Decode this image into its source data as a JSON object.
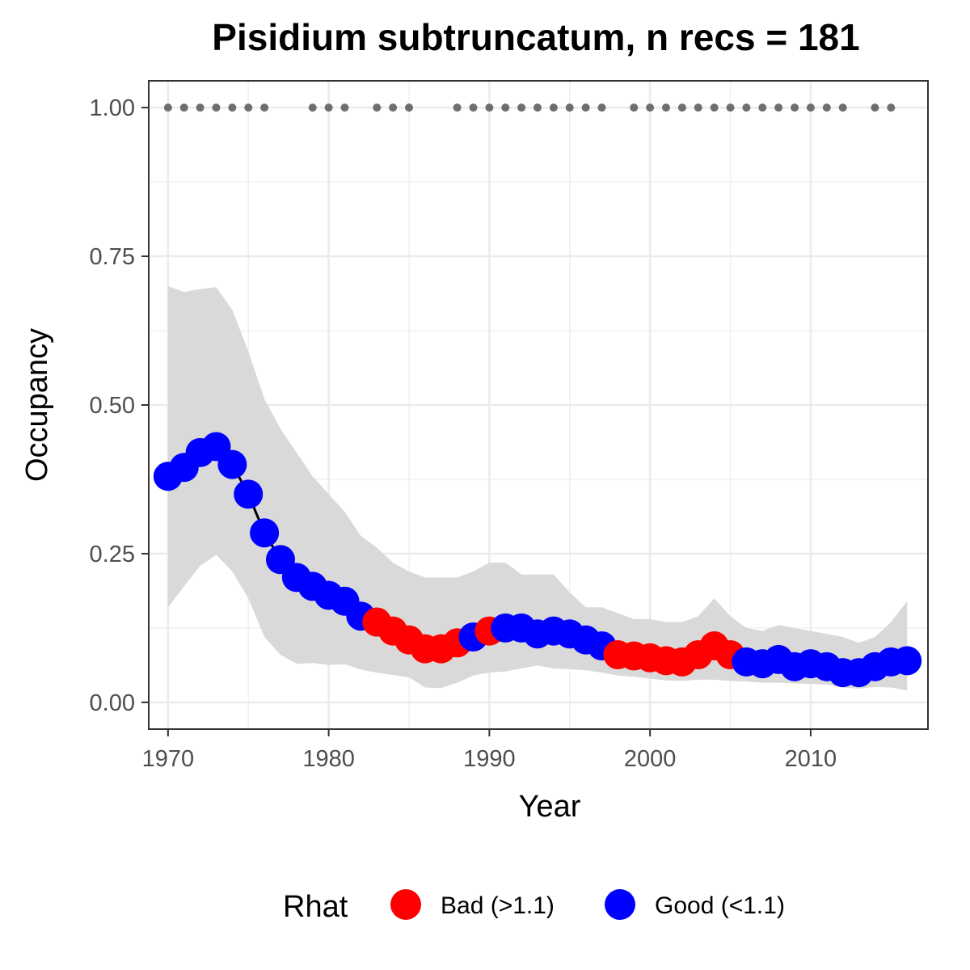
{
  "chart_data": {
    "type": "line",
    "title": "Pisidium subtruncatum, n recs = 181",
    "xlabel": "Year",
    "ylabel": "Occupancy",
    "xlim": [
      1968.8,
      2017.3
    ],
    "ylim": [
      -0.045,
      1.045
    ],
    "xticks": [
      1970,
      1980,
      1990,
      2000,
      2010
    ],
    "xtick_labels": [
      "1970",
      "1980",
      "1990",
      "2000",
      "2010"
    ],
    "yticks": [
      0,
      0.25,
      0.5,
      0.75,
      1.0
    ],
    "ytick_labels": [
      "0.00",
      "0.25",
      "0.50",
      "0.75",
      "1.00"
    ],
    "grid": true,
    "legend": {
      "title": "Rhat",
      "position": "bottom",
      "entries": [
        {
          "key": "Bad",
          "label": "Bad (>1.1)",
          "color": "#ff0000"
        },
        {
          "key": "Good",
          "label": "Good (<1.1)",
          "color": "#0000ff"
        }
      ]
    },
    "colors": {
      "line": "#000000",
      "ribbon": "#d9d9d9",
      "record_dots": "#6e6e6e"
    },
    "years": [
      1970,
      1971,
      1972,
      1973,
      1974,
      1975,
      1976,
      1977,
      1978,
      1979,
      1980,
      1981,
      1982,
      1983,
      1984,
      1985,
      1986,
      1987,
      1988,
      1989,
      1990,
      1991,
      1992,
      1993,
      1994,
      1995,
      1996,
      1997,
      1998,
      1999,
      2000,
      2001,
      2002,
      2003,
      2004,
      2005,
      2006,
      2007,
      2008,
      2009,
      2010,
      2011,
      2012,
      2013,
      2014,
      2015,
      2016
    ],
    "occupancy": [
      0.38,
      0.395,
      0.42,
      0.43,
      0.4,
      0.35,
      0.285,
      0.24,
      0.21,
      0.195,
      0.18,
      0.17,
      0.145,
      0.135,
      0.12,
      0.105,
      0.09,
      0.09,
      0.1,
      0.11,
      0.12,
      0.125,
      0.125,
      0.115,
      0.12,
      0.115,
      0.105,
      0.095,
      0.08,
      0.078,
      0.075,
      0.07,
      0.068,
      0.08,
      0.095,
      0.08,
      0.068,
      0.065,
      0.072,
      0.06,
      0.065,
      0.06,
      0.05,
      0.05,
      0.06,
      0.068,
      0.07
    ],
    "lower": [
      0.16,
      0.195,
      0.23,
      0.248,
      0.22,
      0.175,
      0.11,
      0.08,
      0.065,
      0.066,
      0.063,
      0.064,
      0.055,
      0.05,
      0.046,
      0.042,
      0.025,
      0.024,
      0.033,
      0.045,
      0.05,
      0.052,
      0.057,
      0.062,
      0.057,
      0.056,
      0.054,
      0.05,
      0.045,
      0.043,
      0.04,
      0.037,
      0.036,
      0.038,
      0.038,
      0.036,
      0.035,
      0.033,
      0.033,
      0.032,
      0.031,
      0.03,
      0.025,
      0.023,
      0.026,
      0.025,
      0.02
    ],
    "upper": [
      0.7,
      0.69,
      0.695,
      0.698,
      0.66,
      0.59,
      0.51,
      0.46,
      0.42,
      0.38,
      0.35,
      0.32,
      0.28,
      0.26,
      0.235,
      0.22,
      0.21,
      0.21,
      0.21,
      0.22,
      0.235,
      0.235,
      0.215,
      0.215,
      0.215,
      0.185,
      0.16,
      0.16,
      0.15,
      0.14,
      0.14,
      0.135,
      0.135,
      0.145,
      0.175,
      0.145,
      0.125,
      0.12,
      0.13,
      0.125,
      0.12,
      0.115,
      0.11,
      0.1,
      0.11,
      0.135,
      0.17
    ],
    "rhat": [
      "Good",
      "Good",
      "Good",
      "Good",
      "Good",
      "Good",
      "Good",
      "Good",
      "Good",
      "Good",
      "Good",
      "Good",
      "Good",
      "Bad",
      "Bad",
      "Bad",
      "Bad",
      "Bad",
      "Bad",
      "Good",
      "Bad",
      "Good",
      "Good",
      "Good",
      "Good",
      "Good",
      "Good",
      "Good",
      "Bad",
      "Bad",
      "Bad",
      "Bad",
      "Bad",
      "Bad",
      "Bad",
      "Bad",
      "Good",
      "Good",
      "Good",
      "Good",
      "Good",
      "Good",
      "Good",
      "Good",
      "Good",
      "Good",
      "Good"
    ],
    "record_years": [
      1970,
      1971,
      1972,
      1973,
      1974,
      1975,
      1976,
      1979,
      1980,
      1981,
      1983,
      1984,
      1985,
      1988,
      1989,
      1990,
      1991,
      1992,
      1993,
      1994,
      1995,
      1996,
      1997,
      1999,
      2000,
      2001,
      2002,
      2003,
      2004,
      2005,
      2006,
      2007,
      2008,
      2009,
      2010,
      2011,
      2012,
      2014,
      2015
    ],
    "record_value": 1.0
  }
}
